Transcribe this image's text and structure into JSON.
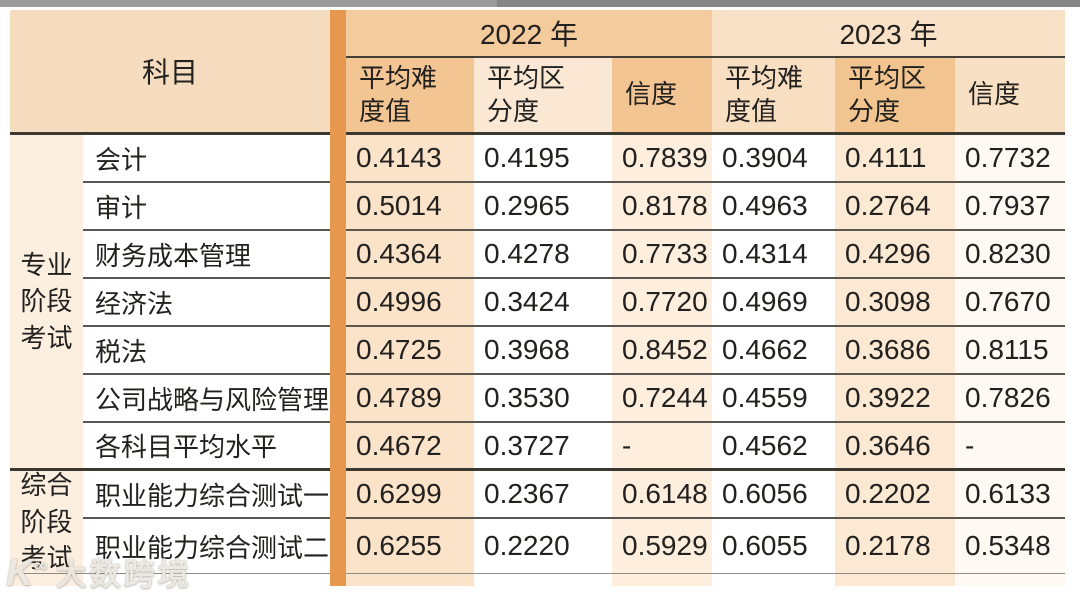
{
  "chart_data": {
    "type": "table",
    "corner_header": "科目",
    "col_groups": [
      "2022 年",
      "2023 年"
    ],
    "columns": [
      "平均难\n度值",
      "平均区\n分度",
      "信度",
      "平均难\n度值",
      "平均区\n分度",
      "信度"
    ],
    "row_groups": [
      {
        "label": "专业\n阶段\n考试",
        "span": 7
      },
      {
        "label": "综合\n阶段\n考试",
        "span": 2
      }
    ],
    "rows": [
      {
        "subject": "会计",
        "values": [
          "0.4143",
          "0.4195",
          "0.7839",
          "0.3904",
          "0.4111",
          "0.7732"
        ]
      },
      {
        "subject": "审计",
        "values": [
          "0.5014",
          "0.2965",
          "0.8178",
          "0.4963",
          "0.2764",
          "0.7937"
        ]
      },
      {
        "subject": "财务成本管理",
        "values": [
          "0.4364",
          "0.4278",
          "0.7733",
          "0.4314",
          "0.4296",
          "0.8230"
        ]
      },
      {
        "subject": "经济法",
        "values": [
          "0.4996",
          "0.3424",
          "0.7720",
          "0.4969",
          "0.3098",
          "0.7670"
        ]
      },
      {
        "subject": "税法",
        "values": [
          "0.4725",
          "0.3968",
          "0.8452",
          "0.4662",
          "0.3686",
          "0.8115"
        ]
      },
      {
        "subject": "公司战略与风险管理",
        "values": [
          "0.4789",
          "0.3530",
          "0.7244",
          "0.4559",
          "0.3922",
          "0.7826"
        ]
      },
      {
        "subject": "各科目平均水平",
        "values": [
          "0.4672",
          "0.3727",
          "-",
          "0.4562",
          "0.3646",
          "-"
        ]
      },
      {
        "subject": "职业能力综合测试一",
        "values": [
          "0.6299",
          "0.2367",
          "0.6148",
          "0.6056",
          "0.2202",
          "0.6133"
        ]
      },
      {
        "subject": "职业能力综合测试二",
        "values": [
          "0.6255",
          "0.2220",
          "0.5929",
          "0.6055",
          "0.2178",
          "0.5348"
        ]
      }
    ]
  },
  "watermark": {
    "logo_text": "K",
    "logo_sup": "∞",
    "brand_text": "大数跨境"
  },
  "colors": {
    "divider_bar": "#e5984e",
    "header_2022": "#f4cb9d",
    "header_2023": "#f9e1c8",
    "subheader_dark": "#f3c592",
    "subheader_light": "#f8dfc2",
    "stage_column": "#fcefe0",
    "tint_strong": "#fae3c9",
    "tint_light": "#fdeedd",
    "top_strip": "#909090"
  }
}
